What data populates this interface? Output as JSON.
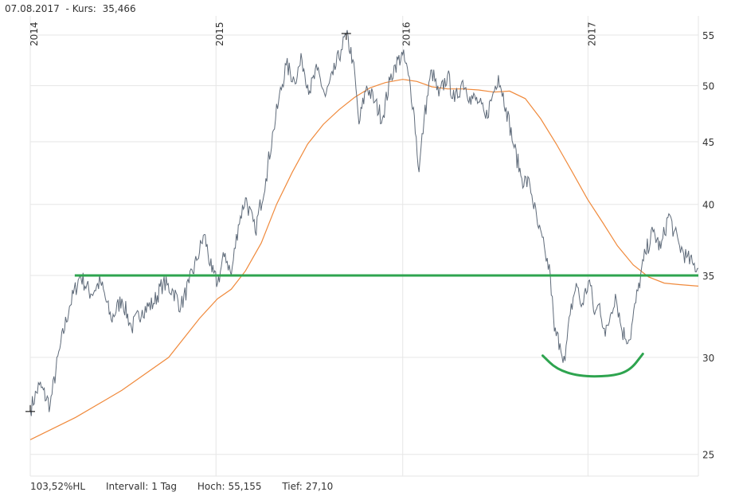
{
  "header": {
    "date": "07.08.2017",
    "kurs_label": "- Kurs:",
    "kurs_value": "35,466"
  },
  "footer": {
    "hl": "103,52%HL",
    "intervall_label": "Intervall:",
    "intervall_value": "1 Tag",
    "hoch_label": "Hoch:",
    "hoch_value": "55,155",
    "tief_label": "Tief:",
    "tief_value": "27,10"
  },
  "colors": {
    "price": "#5f6b7a",
    "ma": "#f08a3c",
    "support": "#2ea44f",
    "grid": "#e6e6e6",
    "axis_text": "#333333"
  },
  "chart_data": {
    "type": "line",
    "title": "",
    "xlabel": "",
    "ylabel": "",
    "y_scale": "log",
    "ylim": [
      24,
      56.5
    ],
    "xlim": [
      "2014-01-02",
      "2017-08-07"
    ],
    "y_ticks": [
      25,
      30,
      35,
      40,
      45,
      50,
      55
    ],
    "x_ticks": [
      {
        "label": "2014",
        "date": "2014-01-02"
      },
      {
        "label": "2015",
        "date": "2015-01-02"
      },
      {
        "label": "2016",
        "date": "2016-01-04"
      },
      {
        "label": "2017",
        "date": "2017-01-02"
      }
    ],
    "grid": true,
    "series": [
      {
        "kind": "price",
        "points": [
          [
            "2014-01-02",
            27.2
          ],
          [
            "2014-01-20",
            28.5
          ],
          [
            "2014-02-10",
            27.4
          ],
          [
            "2014-03-01",
            30.5
          ],
          [
            "2014-03-20",
            33.0
          ],
          [
            "2014-04-10",
            35.0
          ],
          [
            "2014-05-01",
            33.8
          ],
          [
            "2014-05-20",
            34.6
          ],
          [
            "2014-06-10",
            32.2
          ],
          [
            "2014-07-01",
            33.5
          ],
          [
            "2014-07-20",
            31.7
          ],
          [
            "2014-08-10",
            32.8
          ],
          [
            "2014-09-01",
            33.2
          ],
          [
            "2014-09-20",
            34.5
          ],
          [
            "2014-10-10",
            34.0
          ],
          [
            "2014-10-25",
            33.0
          ],
          [
            "2014-11-10",
            34.5
          ],
          [
            "2014-11-25",
            36.0
          ],
          [
            "2014-12-10",
            37.8
          ],
          [
            "2014-12-25",
            35.2
          ],
          [
            "2015-01-05",
            34.5
          ],
          [
            "2015-01-20",
            36.5
          ],
          [
            "2015-02-01",
            35.0
          ],
          [
            "2015-02-15",
            38.5
          ],
          [
            "2015-03-01",
            40.5
          ],
          [
            "2015-03-20",
            38.0
          ],
          [
            "2015-04-10",
            42.0
          ],
          [
            "2015-04-25",
            46.0
          ],
          [
            "2015-05-05",
            48.5
          ],
          [
            "2015-05-20",
            52.0
          ],
          [
            "2015-06-05",
            50.5
          ],
          [
            "2015-06-20",
            52.5
          ],
          [
            "2015-07-05",
            49.5
          ],
          [
            "2015-07-20",
            51.5
          ],
          [
            "2015-08-05",
            49.0
          ],
          [
            "2015-08-20",
            51.0
          ],
          [
            "2015-09-05",
            53.5
          ],
          [
            "2015-09-15",
            55.0
          ],
          [
            "2015-09-28",
            52.5
          ],
          [
            "2015-10-10",
            46.5
          ],
          [
            "2015-10-25",
            50.0
          ],
          [
            "2015-11-10",
            48.5
          ],
          [
            "2015-11-25",
            47.0
          ],
          [
            "2015-12-10",
            50.5
          ],
          [
            "2015-12-20",
            52.0
          ],
          [
            "2016-01-04",
            53.0
          ],
          [
            "2016-01-15",
            51.0
          ],
          [
            "2016-01-25",
            48.0
          ],
          [
            "2016-02-05",
            42.5
          ],
          [
            "2016-02-15",
            47.0
          ],
          [
            "2016-03-01",
            51.5
          ],
          [
            "2016-03-15",
            49.0
          ],
          [
            "2016-04-01",
            51.0
          ],
          [
            "2016-04-15",
            48.5
          ],
          [
            "2016-05-01",
            50.5
          ],
          [
            "2016-05-15",
            49.0
          ],
          [
            "2016-06-01",
            48.5
          ],
          [
            "2016-06-15",
            47.0
          ],
          [
            "2016-06-28",
            49.0
          ],
          [
            "2016-07-10",
            51.0
          ],
          [
            "2016-07-25",
            48.0
          ],
          [
            "2016-08-10",
            44.5
          ],
          [
            "2016-08-25",
            42.0
          ],
          [
            "2016-09-10",
            41.5
          ],
          [
            "2016-09-25",
            38.5
          ],
          [
            "2016-10-10",
            36.5
          ],
          [
            "2016-10-20",
            35.0
          ],
          [
            "2016-10-28",
            31.5
          ],
          [
            "2016-11-08",
            30.8
          ],
          [
            "2016-11-18",
            29.8
          ],
          [
            "2016-11-28",
            32.5
          ],
          [
            "2016-12-10",
            34.5
          ],
          [
            "2016-12-20",
            33.0
          ],
          [
            "2017-01-05",
            34.7
          ],
          [
            "2017-01-15",
            32.5
          ],
          [
            "2017-01-25",
            33.2
          ],
          [
            "2017-02-05",
            31.2
          ],
          [
            "2017-02-15",
            32.5
          ],
          [
            "2017-02-25",
            33.8
          ],
          [
            "2017-03-10",
            31.5
          ],
          [
            "2017-03-25",
            31.0
          ],
          [
            "2017-04-10",
            34.0
          ],
          [
            "2017-04-25",
            36.5
          ],
          [
            "2017-05-10",
            38.0
          ],
          [
            "2017-05-25",
            36.8
          ],
          [
            "2017-06-10",
            39.3
          ],
          [
            "2017-06-20",
            38.0
          ],
          [
            "2017-07-01",
            37.0
          ],
          [
            "2017-07-15",
            36.2
          ],
          [
            "2017-07-28",
            35.7
          ],
          [
            "2017-08-07",
            35.47
          ]
        ]
      },
      {
        "kind": "moving-average",
        "points": [
          [
            "2014-01-02",
            25.7
          ],
          [
            "2014-04-01",
            26.8
          ],
          [
            "2014-07-01",
            28.2
          ],
          [
            "2014-10-01",
            30.0
          ],
          [
            "2014-12-01",
            32.3
          ],
          [
            "2015-01-05",
            33.5
          ],
          [
            "2015-02-01",
            34.1
          ],
          [
            "2015-03-01",
            35.3
          ],
          [
            "2015-04-01",
            37.2
          ],
          [
            "2015-05-01",
            40.0
          ],
          [
            "2015-06-01",
            42.5
          ],
          [
            "2015-07-01",
            44.8
          ],
          [
            "2015-08-01",
            46.5
          ],
          [
            "2015-09-01",
            47.8
          ],
          [
            "2015-10-01",
            48.9
          ],
          [
            "2015-11-01",
            49.8
          ],
          [
            "2015-12-01",
            50.3
          ],
          [
            "2016-01-04",
            50.6
          ],
          [
            "2016-02-01",
            50.4
          ],
          [
            "2016-03-01",
            49.9
          ],
          [
            "2016-04-01",
            49.7
          ],
          [
            "2016-05-01",
            49.7
          ],
          [
            "2016-06-01",
            49.6
          ],
          [
            "2016-07-01",
            49.4
          ],
          [
            "2016-08-01",
            49.5
          ],
          [
            "2016-09-01",
            48.8
          ],
          [
            "2016-10-01",
            47.0
          ],
          [
            "2016-11-01",
            44.8
          ],
          [
            "2016-12-01",
            42.6
          ],
          [
            "2017-01-01",
            40.4
          ],
          [
            "2017-02-01",
            38.6
          ],
          [
            "2017-03-01",
            37.0
          ],
          [
            "2017-04-01",
            35.7
          ],
          [
            "2017-05-01",
            34.9
          ],
          [
            "2017-06-01",
            34.5
          ],
          [
            "2017-07-01",
            34.4
          ],
          [
            "2017-08-07",
            34.3
          ]
        ]
      }
    ],
    "annotations": [
      {
        "kind": "support-line",
        "date_from": "2014-04-01",
        "date_to": "2017-08-07",
        "y": 35.0
      },
      {
        "kind": "bowl-arc",
        "points": [
          [
            "2016-10-05",
            30.1
          ],
          [
            "2016-11-01",
            29.35
          ],
          [
            "2016-12-15",
            28.95
          ],
          [
            "2017-02-15",
            28.95
          ],
          [
            "2017-03-25",
            29.25
          ],
          [
            "2017-04-20",
            30.2
          ]
        ]
      },
      {
        "kind": "high-marker",
        "date": "2015-09-15",
        "y": 55.155
      },
      {
        "kind": "low-marker",
        "date": "2014-01-02",
        "y": 27.1
      }
    ]
  }
}
